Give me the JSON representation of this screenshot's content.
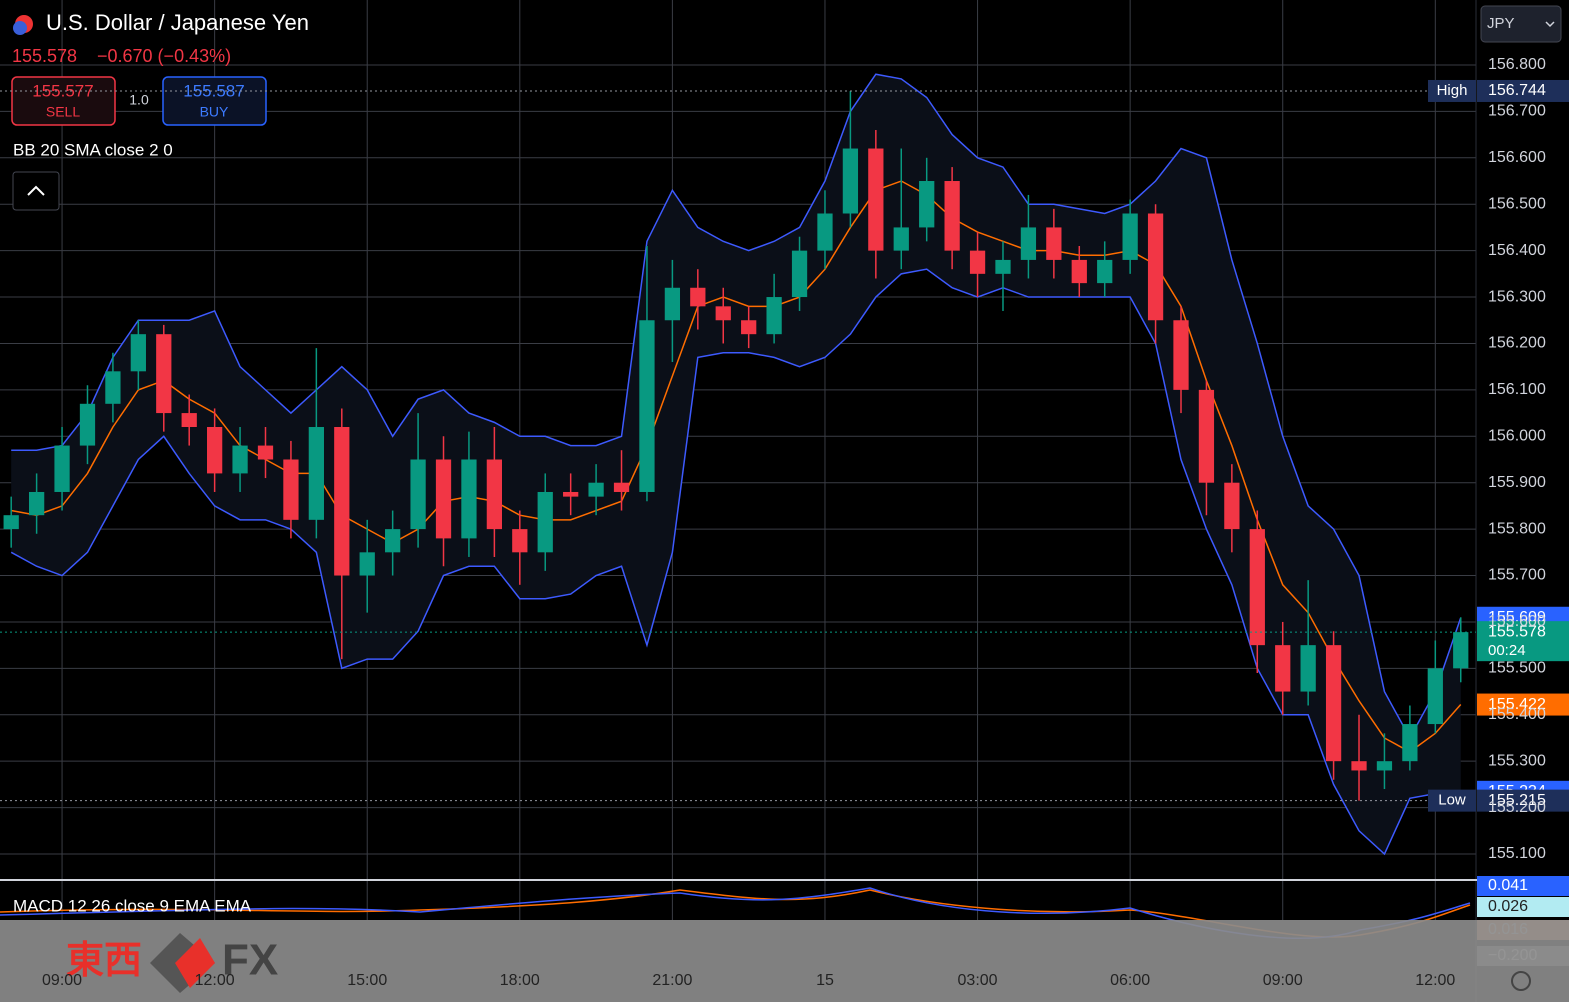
{
  "chart_data": {
    "type": "candlestick",
    "title": "U.S. Dollar / Japanese Yen",
    "last": "155.578",
    "change": "−0.670 (−0.43%)",
    "indicator": "BB 20 SMA close 2 0",
    "x": [
      -1,
      -0.5,
      0,
      0.5,
      1,
      1.5,
      2,
      2.5,
      3,
      3.5,
      4,
      4.5,
      5,
      5.5,
      6,
      6.5,
      7,
      7.5,
      8,
      8.5,
      9,
      9.5,
      10,
      10.5,
      11,
      11.5,
      12,
      12.5,
      13,
      13.5,
      14,
      14.5,
      15,
      15.5,
      16,
      16.5,
      17,
      17.5,
      18,
      18.5,
      19,
      19.5,
      20,
      20.5,
      21,
      21.5,
      22,
      22.5,
      23,
      23.5,
      24,
      24.5,
      25,
      25.5,
      26,
      26.5,
      27,
      27.5
    ],
    "open": [
      155.8,
      155.83,
      155.88,
      155.98,
      156.07,
      156.14,
      156.22,
      156.05,
      156.02,
      155.92,
      155.98,
      155.95,
      155.82,
      156.02,
      155.7,
      155.75,
      155.8,
      155.95,
      155.78,
      155.95,
      155.8,
      155.75,
      155.88,
      155.87,
      155.9,
      155.88,
      156.25,
      156.32,
      156.28,
      156.25,
      156.22,
      156.3,
      156.4,
      156.48,
      156.62,
      156.4,
      156.45,
      156.55,
      156.4,
      156.35,
      156.38,
      156.45,
      156.38,
      156.33,
      156.38,
      156.48,
      156.25,
      156.1,
      155.9,
      155.8,
      155.55,
      155.45,
      155.55,
      155.3,
      155.28,
      155.3,
      155.38,
      155.5
    ],
    "high": [
      155.87,
      155.92,
      156.02,
      156.11,
      156.18,
      156.25,
      156.24,
      156.09,
      156.06,
      156.02,
      156.02,
      155.99,
      156.19,
      156.06,
      155.82,
      155.84,
      156.05,
      156.0,
      156.01,
      156.02,
      155.84,
      155.92,
      155.92,
      155.94,
      155.97,
      156.41,
      156.38,
      156.36,
      156.32,
      156.28,
      156.35,
      156.43,
      156.53,
      156.744,
      156.66,
      156.62,
      156.6,
      156.58,
      156.44,
      156.42,
      156.52,
      156.49,
      156.41,
      156.42,
      156.51,
      156.5,
      156.28,
      156.12,
      155.94,
      155.84,
      155.6,
      155.69,
      155.58,
      155.4,
      155.36,
      155.42,
      155.56,
      155.61
    ],
    "low": [
      155.76,
      155.79,
      155.84,
      155.94,
      156.03,
      156.1,
      156.01,
      155.98,
      155.88,
      155.88,
      155.91,
      155.78,
      155.78,
      155.52,
      155.62,
      155.7,
      155.76,
      155.72,
      155.74,
      155.74,
      155.68,
      155.71,
      155.83,
      155.83,
      155.84,
      155.86,
      156.16,
      156.23,
      156.2,
      156.19,
      156.2,
      156.27,
      156.36,
      156.45,
      156.34,
      156.36,
      156.42,
      156.36,
      156.3,
      156.27,
      156.34,
      156.34,
      156.3,
      156.3,
      156.35,
      156.2,
      156.05,
      155.83,
      155.75,
      155.49,
      155.4,
      155.42,
      155.26,
      155.215,
      155.24,
      155.28,
      155.36,
      155.47
    ],
    "close": [
      155.83,
      155.88,
      155.98,
      156.07,
      156.14,
      156.22,
      156.05,
      156.02,
      155.92,
      155.98,
      155.95,
      155.82,
      156.02,
      155.7,
      155.75,
      155.8,
      155.95,
      155.78,
      155.95,
      155.8,
      155.75,
      155.88,
      155.87,
      155.9,
      155.88,
      156.25,
      156.32,
      156.28,
      156.25,
      156.22,
      156.3,
      156.4,
      156.48,
      156.62,
      156.4,
      156.45,
      156.55,
      156.4,
      156.35,
      156.38,
      156.45,
      156.38,
      156.33,
      156.38,
      156.48,
      156.25,
      156.1,
      155.9,
      155.8,
      155.55,
      155.45,
      155.55,
      155.3,
      155.28,
      155.3,
      155.38,
      155.5,
      155.578
    ],
    "up_color": "#089981",
    "down_color": "#f23645",
    "series": [
      {
        "color": "#3d5afe",
        "values": [
          155.97,
          155.97,
          155.98,
          156.05,
          156.17,
          156.25,
          156.25,
          156.25,
          156.27,
          156.15,
          156.1,
          156.05,
          156.1,
          156.15,
          156.1,
          156.0,
          156.08,
          156.1,
          156.05,
          156.03,
          156.0,
          156.0,
          155.98,
          155.98,
          156.0,
          156.42,
          156.53,
          156.45,
          156.42,
          156.4,
          156.42,
          156.45,
          156.55,
          156.7,
          156.78,
          156.77,
          156.73,
          156.65,
          156.6,
          156.58,
          156.5,
          156.5,
          156.49,
          156.48,
          156.5,
          156.55,
          156.62,
          156.6,
          156.38,
          156.2,
          156.0,
          155.85,
          155.8,
          155.7,
          155.45,
          155.35,
          155.45,
          155.609
        ]
      },
      {
        "color": "#3d5afe",
        "values": [
          155.75,
          155.72,
          155.7,
          155.75,
          155.85,
          155.95,
          156.0,
          155.92,
          155.85,
          155.82,
          155.82,
          155.8,
          155.75,
          155.5,
          155.52,
          155.52,
          155.58,
          155.7,
          155.72,
          155.72,
          155.65,
          155.65,
          155.66,
          155.7,
          155.72,
          155.55,
          155.75,
          156.17,
          156.18,
          156.18,
          156.17,
          156.15,
          156.17,
          156.22,
          156.3,
          156.35,
          156.36,
          156.32,
          156.3,
          156.32,
          156.3,
          156.3,
          156.3,
          156.3,
          156.3,
          156.2,
          155.95,
          155.8,
          155.68,
          155.5,
          155.4,
          155.4,
          155.25,
          155.15,
          155.1,
          155.22,
          155.23,
          155.234
        ]
      },
      {
        "color": "#ff6d00",
        "values": [
          155.84,
          155.83,
          155.85,
          155.92,
          156.02,
          156.1,
          156.12,
          156.08,
          156.05,
          155.98,
          155.95,
          155.92,
          155.92,
          155.83,
          155.8,
          155.77,
          155.8,
          155.86,
          155.87,
          155.86,
          155.83,
          155.82,
          155.82,
          155.84,
          155.86,
          155.98,
          156.13,
          156.28,
          156.3,
          156.28,
          156.28,
          156.3,
          156.36,
          156.45,
          156.53,
          156.55,
          156.52,
          156.47,
          156.44,
          156.42,
          156.4,
          156.4,
          156.39,
          156.39,
          156.4,
          156.37,
          156.28,
          156.12,
          155.98,
          155.82,
          155.68,
          155.62,
          155.52,
          155.43,
          155.35,
          155.32,
          155.36,
          155.422
        ]
      }
    ],
    "xlim": [
      -1.22,
      27.8
    ],
    "ylim": [
      155.044,
      156.94
    ],
    "xticks": [
      {
        "value": 0,
        "label": "09:00"
      },
      {
        "value": 3,
        "label": "12:00"
      },
      {
        "value": 6,
        "label": "15:00"
      },
      {
        "value": 9,
        "label": "18:00"
      },
      {
        "value": 12,
        "label": "21:00"
      },
      {
        "value": 15,
        "label": "15"
      },
      {
        "value": 18,
        "label": "03:00"
      },
      {
        "value": 21,
        "label": "06:00"
      },
      {
        "value": 24,
        "label": "09:00"
      },
      {
        "value": 27,
        "label": "12:00"
      }
    ],
    "yticks": [
      {
        "value": 155.1,
        "label": "155.100"
      },
      {
        "value": 155.2,
        "label": "155.200"
      },
      {
        "value": 155.3,
        "label": "155.300"
      },
      {
        "value": 155.4,
        "label": "155.400"
      },
      {
        "value": 155.5,
        "label": "155.500"
      },
      {
        "value": 155.6,
        "label": "155.600"
      },
      {
        "value": 155.7,
        "label": "155.700"
      },
      {
        "value": 155.8,
        "label": "155.800"
      },
      {
        "value": 155.9,
        "label": "155.900"
      },
      {
        "value": 156,
        "label": "156.000"
      },
      {
        "value": 156.1,
        "label": "156.100"
      },
      {
        "value": 156.2,
        "label": "156.200"
      },
      {
        "value": 156.3,
        "label": "156.300"
      },
      {
        "value": 156.4,
        "label": "156.400"
      },
      {
        "value": 156.5,
        "label": "156.500"
      },
      {
        "value": 156.6,
        "label": "156.600"
      },
      {
        "value": 156.7,
        "label": "156.700"
      },
      {
        "value": 156.8,
        "label": "156.800"
      }
    ],
    "grid": true,
    "price_tags": [
      {
        "value": 156.744,
        "name": "High",
        "color": "#1e2f5a"
      },
      {
        "value": 155.609,
        "color": "#2962ff"
      },
      {
        "value": 155.578,
        "sub": "00:24",
        "color": "#089981"
      },
      {
        "value": 155.422,
        "color": "#ff6d00"
      },
      {
        "value": 155.234,
        "color": "#2962ff"
      },
      {
        "value": 155.215,
        "name": "Low",
        "color": "#1e2f5a"
      }
    ]
  },
  "trade": {
    "sell_price": "155.577",
    "sell": "SELL",
    "size": "1.0",
    "buy_price": "155.587",
    "buy": "BUY"
  },
  "currency": "JPY",
  "macd": {
    "label": "MACD 12 26 close 9 EMA EMA",
    "tags": [
      0.041,
      0.026,
      0.016,
      {
        "value": -0.2,
        "label": "−0.200"
      }
    ]
  },
  "watermark": {
    "kanji": "東西",
    "fx": "FX"
  }
}
